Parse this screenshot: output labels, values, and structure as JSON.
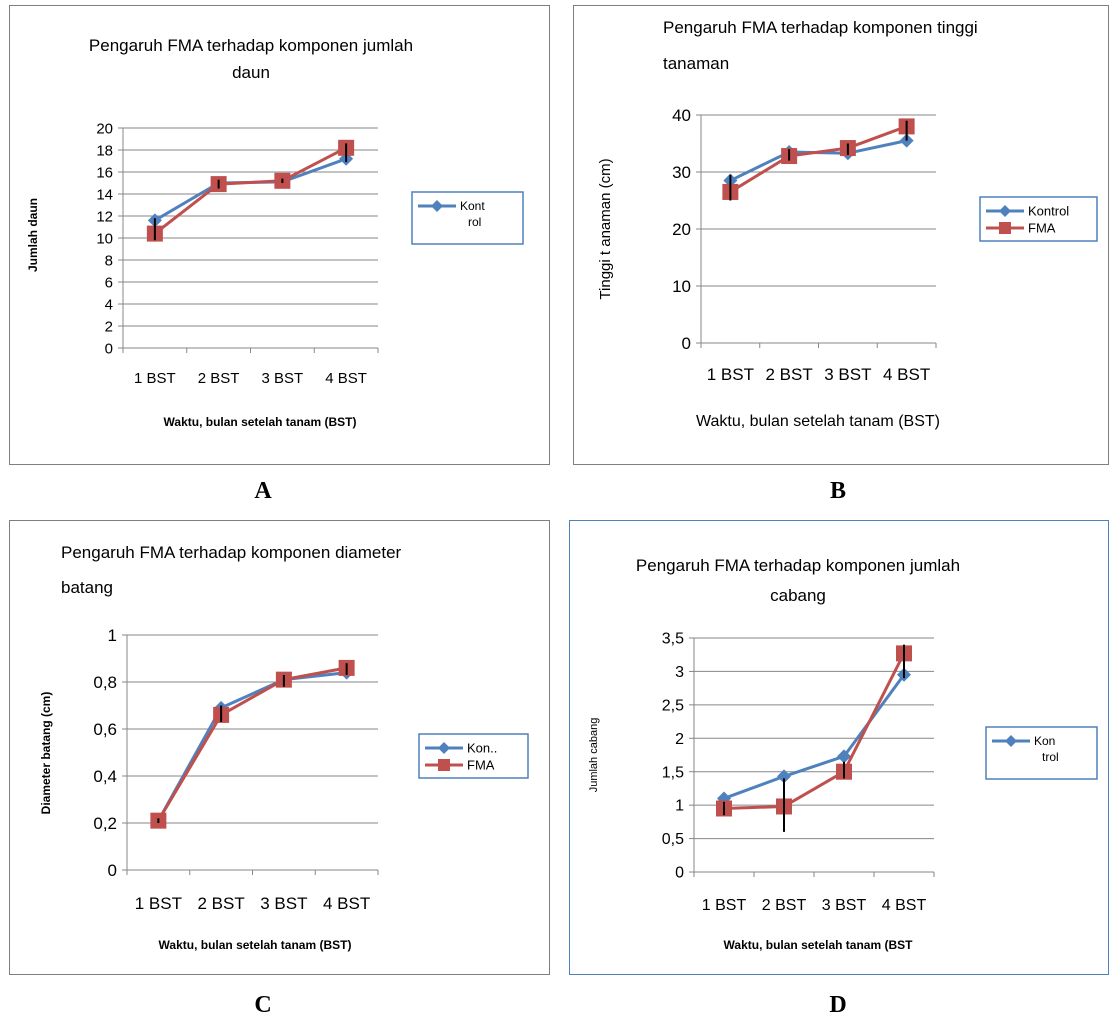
{
  "panel_letters": [
    "A",
    "B",
    "C",
    "D"
  ],
  "colors": {
    "kontrol": "#4f81bd",
    "fma": "#c0504d",
    "grid": "#878787",
    "errorbar": "#000000"
  },
  "chart_data": [
    {
      "type": "line",
      "title_lines": [
        "Pengaruh  FMA terhadap komponen jumlah",
        "daun"
      ],
      "xlabel": "Waktu, bulan setelah tanam (BST)",
      "ylabel": "Jumlah daun",
      "categories": [
        "1 BST",
        "2 BST",
        "3 BST",
        "4 BST"
      ],
      "ylim": [
        0,
        20
      ],
      "yticks": [
        "0",
        "2",
        "4",
        "6",
        "8",
        "10",
        "12",
        "14",
        "16",
        "18",
        "20"
      ],
      "grid": true,
      "series": [
        {
          "name": "Kont rol",
          "legend_lines": [
            "Kont",
            "rol"
          ],
          "values": [
            11.6,
            15.0,
            15.1,
            17.2
          ],
          "marker": "diamond"
        },
        {
          "name": "",
          "values": [
            10.4,
            14.9,
            15.2,
            18.2
          ],
          "marker": "square"
        }
      ],
      "errorbars": [
        [
          9.8,
          11.8
        ],
        [
          14.5,
          15.3
        ],
        [
          15.0,
          15.4
        ],
        [
          16.9,
          18.6
        ]
      ],
      "legend_position": "right"
    },
    {
      "type": "line",
      "title_lines": [
        "Pengaruh FMA terhadap komponen tinggi",
        "tanaman"
      ],
      "xlabel": "Waktu, bulan setelah tanam (BST)",
      "ylabel": "Tinggi t anaman (cm)",
      "categories": [
        "1 BST",
        "2 BST",
        "3 BST",
        "4 BST"
      ],
      "ylim": [
        0,
        40
      ],
      "yticks": [
        "0",
        "10",
        "20",
        "30",
        "40"
      ],
      "grid": true,
      "series": [
        {
          "name": "Kontrol",
          "legend_lines": [
            "Kontrol"
          ],
          "values": [
            28.5,
            33.5,
            33.3,
            35.5
          ],
          "marker": "diamond"
        },
        {
          "name": "FMA",
          "legend_lines": [
            "FMA"
          ],
          "values": [
            26.5,
            32.8,
            34.2,
            38.0
          ],
          "marker": "square"
        }
      ],
      "errorbars": [
        [
          25.0,
          29.5
        ],
        [
          32.0,
          34.0
        ],
        [
          33.0,
          35.0
        ],
        [
          35.5,
          39.0
        ]
      ],
      "legend_position": "right"
    },
    {
      "type": "line",
      "title_lines": [
        "Pengaruh FMA terhadap komponen diameter",
        "batang"
      ],
      "xlabel": "Waktu, bulan setelah tanam (BST)",
      "ylabel": "Diameter batang (cm)",
      "categories": [
        "1 BST",
        "2 BST",
        "3 BST",
        "4 BST"
      ],
      "ylim": [
        0,
        1
      ],
      "yticks": [
        "0",
        "0,2",
        "0,4",
        "0,6",
        "0,8",
        "1"
      ],
      "grid": true,
      "series": [
        {
          "name": "Kon..",
          "legend_lines": [
            "Kon.."
          ],
          "values": [
            0.21,
            0.69,
            0.81,
            0.84
          ],
          "marker": "diamond"
        },
        {
          "name": "FMA",
          "legend_lines": [
            "FMA"
          ],
          "values": [
            0.21,
            0.66,
            0.81,
            0.86
          ],
          "marker": "square"
        }
      ],
      "errorbars": [
        [
          0.2,
          0.22
        ],
        [
          0.63,
          0.7
        ],
        [
          0.78,
          0.83
        ],
        [
          0.83,
          0.88
        ]
      ],
      "legend_position": "right"
    },
    {
      "type": "line",
      "title_lines": [
        "Pengaruh FMA terhadap komponen jumlah",
        "cabang"
      ],
      "xlabel": "Waktu, bulan setelah tanam (BST",
      "ylabel": "Jumlah cabang",
      "categories": [
        "1 BST",
        "2 BST",
        "3 BST",
        "4 BST"
      ],
      "ylim": [
        0,
        3.5
      ],
      "yticks": [
        "0",
        "0,5",
        "1",
        "1,5",
        "2",
        "2,5",
        "3",
        "3,5"
      ],
      "grid": true,
      "series": [
        {
          "name": "Kon trol",
          "legend_lines": [
            "Kon",
            "trol"
          ],
          "values": [
            1.1,
            1.43,
            1.73,
            2.95
          ],
          "marker": "diamond"
        },
        {
          "name": "",
          "values": [
            0.95,
            0.98,
            1.5,
            3.27
          ],
          "marker": "square"
        }
      ],
      "errorbars": [
        [
          0.85,
          1.05
        ],
        [
          0.6,
          1.4
        ],
        [
          1.4,
          1.65
        ],
        [
          2.9,
          3.4
        ]
      ],
      "legend_position": "right"
    }
  ]
}
